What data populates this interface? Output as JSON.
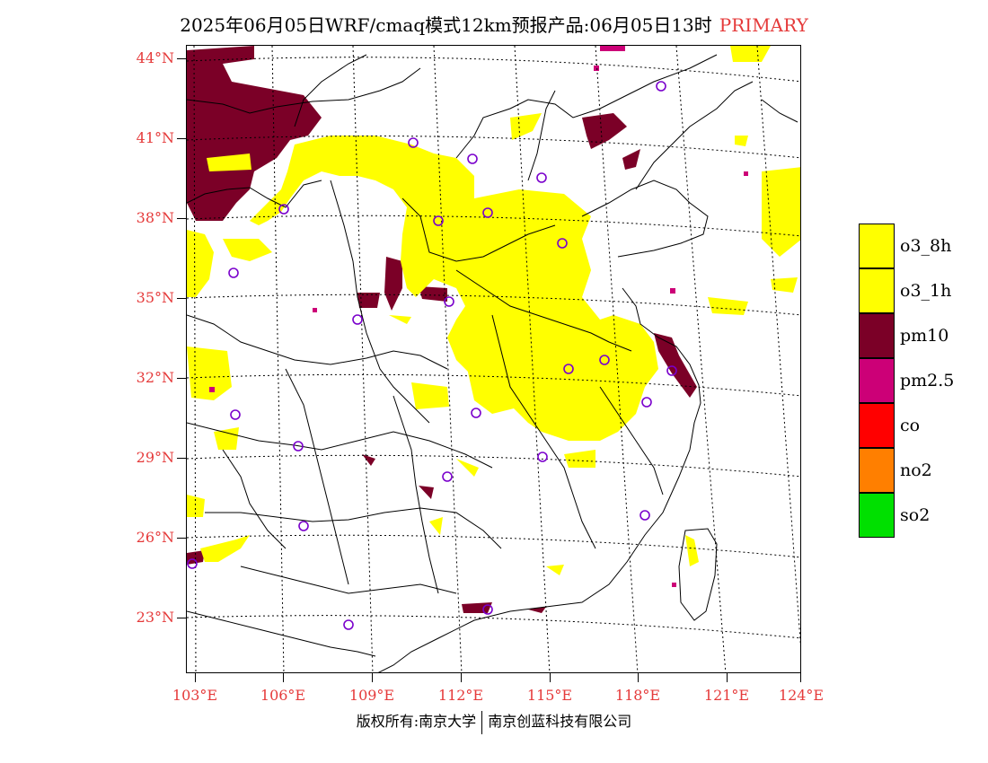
{
  "title": {
    "text": "2025年06月05日WRF/cmaq模式12km预报产品:06月05日13时",
    "tag": "PRIMARY"
  },
  "map": {
    "lat_labels": [
      "44°N",
      "41°N",
      "38°N",
      "35°N",
      "32°N",
      "29°N",
      "26°N",
      "23°N"
    ],
    "lon_labels": [
      "103°E",
      "106°E",
      "109°E",
      "112°E",
      "115°E",
      "118°E",
      "121°E",
      "124°E"
    ],
    "station_marker_color": "#7a00cc",
    "boundary_color": "#000000"
  },
  "legend": [
    {
      "label": "o3_8h",
      "color": "#ffff00"
    },
    {
      "label": "o3_1h",
      "color": "#ffff00"
    },
    {
      "label": "pm10",
      "color": "#7b0027"
    },
    {
      "label": "pm2.5",
      "color": "#cc0077"
    },
    {
      "label": "co",
      "color": "#ff0000"
    },
    {
      "label": "no2",
      "color": "#ff7f00"
    },
    {
      "label": "so2",
      "color": "#00e000"
    }
  ],
  "footer": {
    "left": "版权所有:南京大学",
    "right": "南京创蓝科技有限公司"
  }
}
